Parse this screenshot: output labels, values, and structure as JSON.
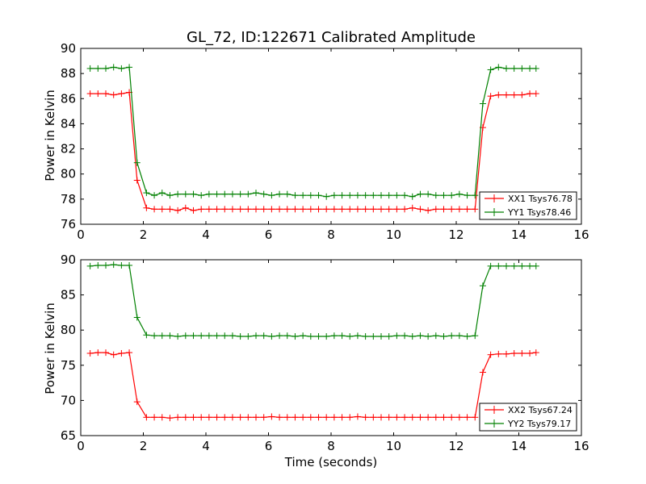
{
  "chart_data": [
    {
      "type": "line",
      "title": "GL_72, ID:122671 Calibrated Amplitude",
      "xlabel": "",
      "ylabel": "Power in Kelvin",
      "xlim": [
        0,
        16
      ],
      "ylim": [
        76,
        90
      ],
      "xticks": [
        0,
        2,
        4,
        6,
        8,
        10,
        12,
        14,
        16
      ],
      "yticks": [
        76,
        78,
        80,
        82,
        84,
        86,
        88,
        90
      ],
      "legend_position": "lower-right",
      "x": [
        0.3,
        0.55,
        0.8,
        1.05,
        1.3,
        1.55,
        1.8,
        2.1,
        2.35,
        2.6,
        2.85,
        3.1,
        3.35,
        3.6,
        3.85,
        4.1,
        4.35,
        4.6,
        4.85,
        5.1,
        5.35,
        5.6,
        5.85,
        6.1,
        6.35,
        6.6,
        6.85,
        7.1,
        7.35,
        7.6,
        7.85,
        8.1,
        8.35,
        8.6,
        8.85,
        9.1,
        9.35,
        9.6,
        9.85,
        10.1,
        10.35,
        10.6,
        10.85,
        11.1,
        11.35,
        11.6,
        11.85,
        12.1,
        12.35,
        12.6,
        12.85,
        13.1,
        13.35,
        13.6,
        13.85,
        14.1,
        14.35,
        14.55
      ],
      "series": [
        {
          "name": "XX1 Tsys76.78",
          "color": "#ff0000",
          "values": [
            86.4,
            86.4,
            86.4,
            86.3,
            86.4,
            86.5,
            79.5,
            77.3,
            77.2,
            77.2,
            77.2,
            77.1,
            77.3,
            77.1,
            77.2,
            77.2,
            77.2,
            77.2,
            77.2,
            77.2,
            77.2,
            77.2,
            77.2,
            77.2,
            77.2,
            77.2,
            77.2,
            77.2,
            77.2,
            77.2,
            77.2,
            77.2,
            77.2,
            77.2,
            77.2,
            77.2,
            77.2,
            77.2,
            77.2,
            77.2,
            77.2,
            77.3,
            77.2,
            77.1,
            77.2,
            77.2,
            77.2,
            77.2,
            77.2,
            77.2,
            83.7,
            86.2,
            86.3,
            86.3,
            86.3,
            86.3,
            86.4,
            86.4
          ]
        },
        {
          "name": "YY1 Tsys78.46",
          "color": "#008000",
          "values": [
            88.4,
            88.4,
            88.4,
            88.5,
            88.4,
            88.5,
            80.9,
            78.5,
            78.3,
            78.5,
            78.3,
            78.4,
            78.4,
            78.4,
            78.3,
            78.4,
            78.4,
            78.4,
            78.4,
            78.4,
            78.4,
            78.5,
            78.4,
            78.3,
            78.4,
            78.4,
            78.3,
            78.3,
            78.3,
            78.3,
            78.2,
            78.3,
            78.3,
            78.3,
            78.3,
            78.3,
            78.3,
            78.3,
            78.3,
            78.3,
            78.3,
            78.2,
            78.4,
            78.4,
            78.3,
            78.3,
            78.3,
            78.4,
            78.3,
            78.3,
            85.6,
            88.3,
            88.5,
            88.4,
            88.4,
            88.4,
            88.4,
            88.4
          ]
        }
      ]
    },
    {
      "type": "line",
      "title": "",
      "xlabel": "Time (seconds)",
      "ylabel": "Power in Kelvin",
      "xlim": [
        0,
        16
      ],
      "ylim": [
        65,
        90
      ],
      "xticks": [
        0,
        2,
        4,
        6,
        8,
        10,
        12,
        14,
        16
      ],
      "yticks": [
        65,
        70,
        75,
        80,
        85,
        90
      ],
      "legend_position": "lower-right",
      "x": [
        0.3,
        0.55,
        0.8,
        1.05,
        1.3,
        1.55,
        1.8,
        2.1,
        2.35,
        2.6,
        2.85,
        3.1,
        3.35,
        3.6,
        3.85,
        4.1,
        4.35,
        4.6,
        4.85,
        5.1,
        5.35,
        5.6,
        5.85,
        6.1,
        6.35,
        6.6,
        6.85,
        7.1,
        7.35,
        7.6,
        7.85,
        8.1,
        8.35,
        8.6,
        8.85,
        9.1,
        9.35,
        9.6,
        9.85,
        10.1,
        10.35,
        10.6,
        10.85,
        11.1,
        11.35,
        11.6,
        11.85,
        12.1,
        12.35,
        12.6,
        12.85,
        13.1,
        13.35,
        13.6,
        13.85,
        14.1,
        14.35,
        14.55
      ],
      "series": [
        {
          "name": "XX2 Tsys67.24",
          "color": "#ff0000",
          "values": [
            76.7,
            76.8,
            76.8,
            76.5,
            76.7,
            76.8,
            69.8,
            67.6,
            67.6,
            67.6,
            67.5,
            67.6,
            67.6,
            67.6,
            67.6,
            67.6,
            67.6,
            67.6,
            67.6,
            67.6,
            67.6,
            67.6,
            67.6,
            67.7,
            67.6,
            67.6,
            67.6,
            67.6,
            67.6,
            67.6,
            67.6,
            67.6,
            67.6,
            67.6,
            67.7,
            67.6,
            67.6,
            67.6,
            67.6,
            67.6,
            67.6,
            67.6,
            67.6,
            67.6,
            67.6,
            67.6,
            67.6,
            67.6,
            67.6,
            67.6,
            74.0,
            76.5,
            76.6,
            76.6,
            76.7,
            76.7,
            76.7,
            76.8
          ]
        },
        {
          "name": "YY2 Tsys79.17",
          "color": "#008000",
          "values": [
            89.1,
            89.2,
            89.2,
            89.3,
            89.2,
            89.2,
            81.8,
            79.3,
            79.2,
            79.2,
            79.2,
            79.1,
            79.2,
            79.2,
            79.2,
            79.2,
            79.2,
            79.2,
            79.2,
            79.1,
            79.1,
            79.2,
            79.2,
            79.1,
            79.2,
            79.2,
            79.1,
            79.2,
            79.1,
            79.1,
            79.1,
            79.2,
            79.2,
            79.1,
            79.2,
            79.1,
            79.1,
            79.1,
            79.1,
            79.2,
            79.2,
            79.1,
            79.2,
            79.1,
            79.2,
            79.1,
            79.2,
            79.2,
            79.1,
            79.2,
            86.3,
            89.1,
            89.1,
            89.1,
            89.1,
            89.1,
            89.1,
            89.1
          ]
        }
      ]
    }
  ]
}
